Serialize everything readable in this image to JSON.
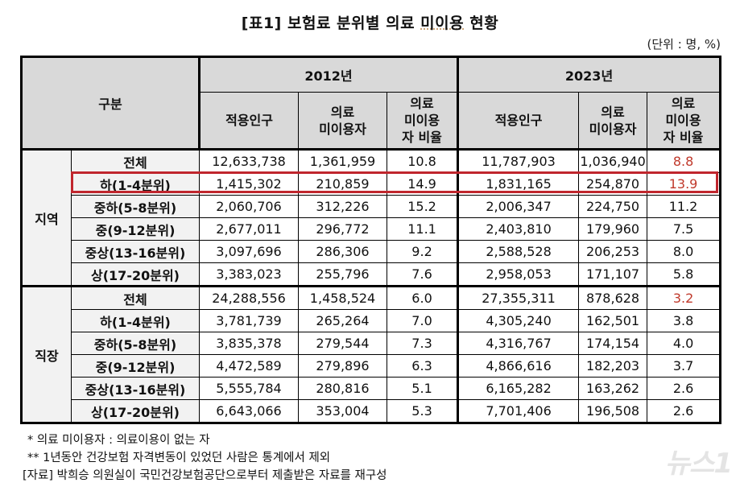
{
  "title": {
    "prefix": "[표1] 보험료 분위별 의료 ",
    "underlined": "미이용",
    "suffix": " 현황"
  },
  "unit": "(단위 : 명, %)",
  "table": {
    "category_header": "구분",
    "years": [
      "2012년",
      "2023년"
    ],
    "sub_headers": [
      "적용인구",
      "의료\n미이용자",
      "의료\n미이용\n자 비율"
    ],
    "groups": [
      {
        "name": "지역",
        "rows": [
          {
            "label": "전체",
            "y2012": {
              "pop": "12,633,738",
              "nonusers": "1,361,959",
              "rate": "10.8"
            },
            "y2023": {
              "pop": "11,787,903",
              "nonusers": "1,036,940",
              "rate": "8.8"
            },
            "rate2023_red": true
          },
          {
            "label": "하(1-4분위)",
            "y2012": {
              "pop": "1,415,302",
              "nonusers": "210,859",
              "rate": "14.9"
            },
            "y2023": {
              "pop": "1,831,165",
              "nonusers": "254,870",
              "rate": "13.9"
            },
            "rate2023_red": true,
            "highlighted": true
          },
          {
            "label": "중하(5-8분위)",
            "y2012": {
              "pop": "2,060,706",
              "nonusers": "312,226",
              "rate": "15.2"
            },
            "y2023": {
              "pop": "2,006,347",
              "nonusers": "224,750",
              "rate": "11.2"
            }
          },
          {
            "label": "중(9-12분위)",
            "y2012": {
              "pop": "2,677,011",
              "nonusers": "296,772",
              "rate": "11.1"
            },
            "y2023": {
              "pop": "2,403,810",
              "nonusers": "179,960",
              "rate": "7.5"
            }
          },
          {
            "label": "중상(13-16분위)",
            "y2012": {
              "pop": "3,097,696",
              "nonusers": "286,306",
              "rate": "9.2"
            },
            "y2023": {
              "pop": "2,588,528",
              "nonusers": "206,253",
              "rate": "8.0"
            }
          },
          {
            "label": "상(17-20분위)",
            "y2012": {
              "pop": "3,383,023",
              "nonusers": "255,796",
              "rate": "7.6"
            },
            "y2023": {
              "pop": "2,958,053",
              "nonusers": "171,107",
              "rate": "5.8"
            }
          }
        ]
      },
      {
        "name": "직장",
        "rows": [
          {
            "label": "전체",
            "y2012": {
              "pop": "24,288,556",
              "nonusers": "1,458,524",
              "rate": "6.0"
            },
            "y2023": {
              "pop": "27,355,311",
              "nonusers": "878,628",
              "rate": "3.2"
            },
            "rate2023_red": true
          },
          {
            "label": "하(1-4분위)",
            "y2012": {
              "pop": "3,781,739",
              "nonusers": "265,264",
              "rate": "7.0"
            },
            "y2023": {
              "pop": "4,305,240",
              "nonusers": "162,501",
              "rate": "3.8"
            }
          },
          {
            "label": "중하(5-8분위)",
            "y2012": {
              "pop": "3,835,378",
              "nonusers": "279,544",
              "rate": "7.3"
            },
            "y2023": {
              "pop": "4,316,767",
              "nonusers": "174,154",
              "rate": "4.0"
            }
          },
          {
            "label": "중(9-12분위)",
            "y2012": {
              "pop": "4,472,589",
              "nonusers": "279,896",
              "rate": "6.3"
            },
            "y2023": {
              "pop": "4,866,616",
              "nonusers": "182,203",
              "rate": "3.7"
            }
          },
          {
            "label": "중상(13-16분위)",
            "y2012": {
              "pop": "5,555,784",
              "nonusers": "280,816",
              "rate": "5.1"
            },
            "y2023": {
              "pop": "6,165,282",
              "nonusers": "163,262",
              "rate": "2.6"
            }
          },
          {
            "label": "상(17-20분위)",
            "y2012": {
              "pop": "6,643,066",
              "nonusers": "353,004",
              "rate": "5.3"
            },
            "y2023": {
              "pop": "7,701,406",
              "nonusers": "196,508",
              "rate": "2.6"
            }
          }
        ]
      }
    ]
  },
  "notes": [
    "* 의료 미이용자 : 의료이용이 없는 자",
    "** 1년동안 건강보험 자격변동이 있었던 사람은 통계에서 제외",
    "[자료] 박희승 의원실이 국민건강보험공단으로부터 제출받은 자료를 재구성"
  ],
  "watermark": "뉴스1",
  "colors": {
    "highlight_border": "#c0262d",
    "red_text": "#c0392b",
    "header_bg": "#d9d9d9",
    "label_bg": "#f2f2f2"
  }
}
